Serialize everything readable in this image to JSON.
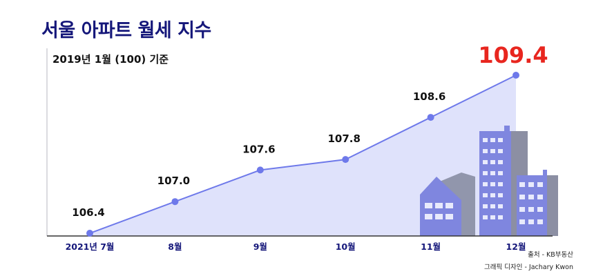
{
  "header": {
    "title": "서울 아파트 월세 지수",
    "subtitle": "2019년 1월 (100) 기준"
  },
  "footer": {
    "source": "출처 - KB부동산",
    "design": "그래픽 디자인 - Jachary Kwon"
  },
  "colors": {
    "title": "#15177a",
    "line": "#6e79ea",
    "fill": "#dfe2fb",
    "highlight": "#e8261f"
  },
  "chart_data": {
    "type": "area",
    "title": "서울 아파트 월세 지수",
    "subtitle": "2019년 1월 (100) 기준",
    "categories": [
      "2021년 7월",
      "8월",
      "9월",
      "10월",
      "11월",
      "12월"
    ],
    "series": [
      {
        "values": [
          106.4,
          107.0,
          107.6,
          107.8,
          108.6,
          109.4
        ]
      }
    ],
    "data_labels": [
      "106.4",
      "107.0",
      "107.6",
      "107.8",
      "108.6",
      "109.4"
    ],
    "ylim": [
      106.4,
      109.4
    ],
    "grid": false,
    "highlight_last": true
  }
}
